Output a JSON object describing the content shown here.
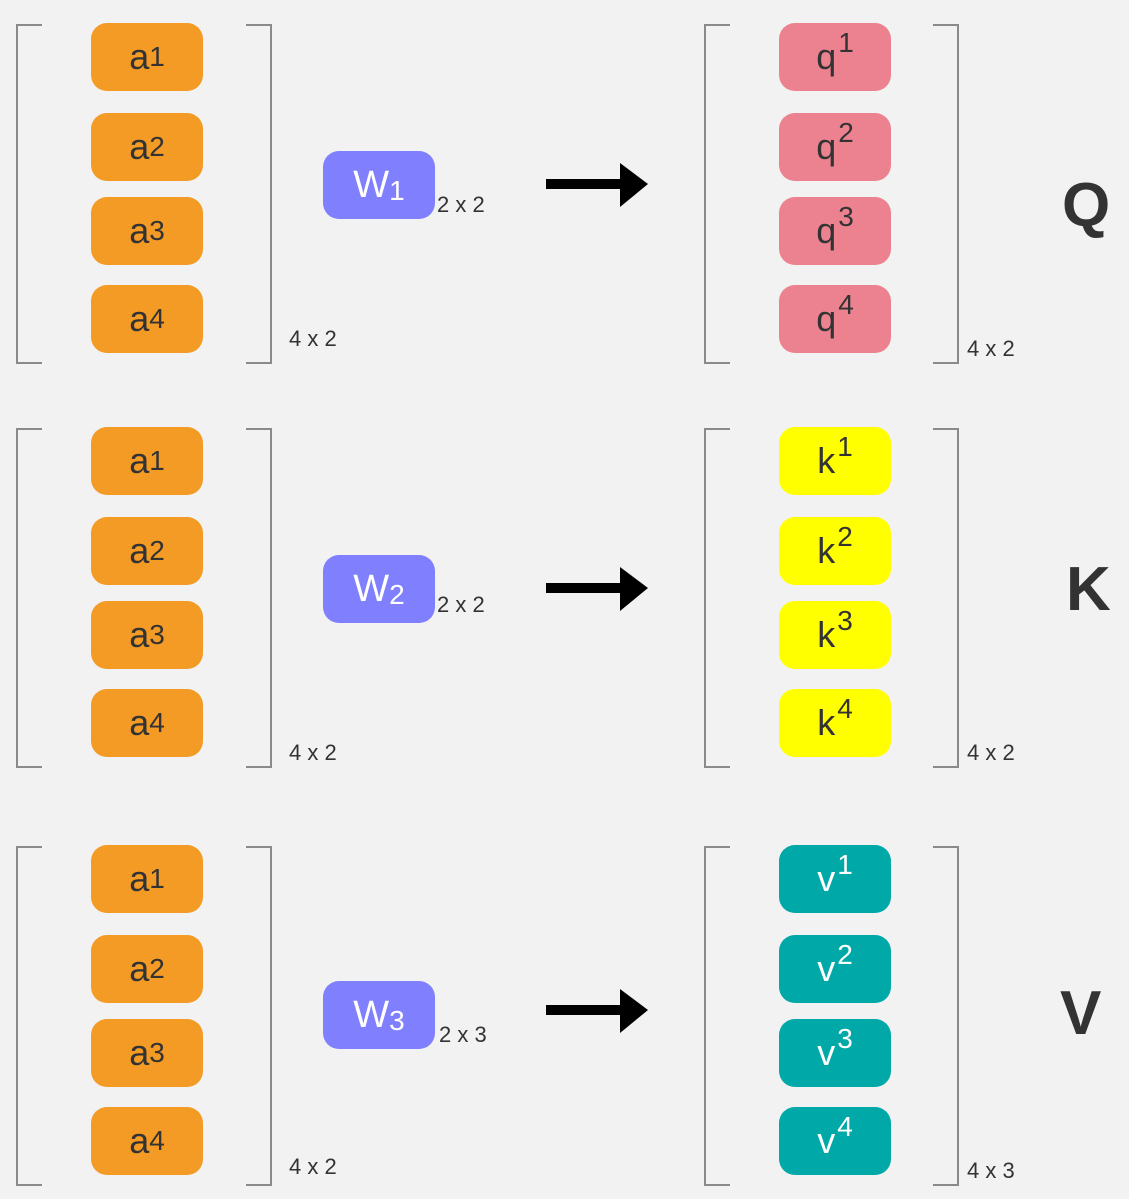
{
  "rows": [
    {
      "input_items": [
        {
          "base": "a",
          "index": "1"
        },
        {
          "base": "a",
          "index": "2"
        },
        {
          "base": "a",
          "index": "3"
        },
        {
          "base": "a",
          "index": "4"
        }
      ],
      "input_dim": "4 x 2",
      "weight": {
        "base": "W",
        "index": "1"
      },
      "weight_dim": "2 x 2",
      "output_items": [
        {
          "base": "q",
          "index": "1"
        },
        {
          "base": "q",
          "index": "2"
        },
        {
          "base": "q",
          "index": "3"
        },
        {
          "base": "q",
          "index": "4"
        }
      ],
      "output_dim": "4 x 2",
      "label": "Q",
      "output_color": "#ec8290"
    },
    {
      "input_items": [
        {
          "base": "a",
          "index": "1"
        },
        {
          "base": "a",
          "index": "2"
        },
        {
          "base": "a",
          "index": "3"
        },
        {
          "base": "a",
          "index": "4"
        }
      ],
      "input_dim": "4 x 2",
      "weight": {
        "base": "W",
        "index": "2"
      },
      "weight_dim": "2 x 2",
      "output_items": [
        {
          "base": "k",
          "index": "1"
        },
        {
          "base": "k",
          "index": "2"
        },
        {
          "base": "k",
          "index": "3"
        },
        {
          "base": "k",
          "index": "4"
        }
      ],
      "output_dim": "4 x 2",
      "label": "K",
      "output_color": "#ffff00"
    },
    {
      "input_items": [
        {
          "base": "a",
          "index": "1"
        },
        {
          "base": "a",
          "index": "2"
        },
        {
          "base": "a",
          "index": "3"
        },
        {
          "base": "a",
          "index": "4"
        }
      ],
      "input_dim": "4 x 2",
      "weight": {
        "base": "W",
        "index": "3"
      },
      "weight_dim": "2 x 3",
      "output_items": [
        {
          "base": "v",
          "index": "1"
        },
        {
          "base": "v",
          "index": "2"
        },
        {
          "base": "v",
          "index": "3"
        },
        {
          "base": "v",
          "index": "4"
        }
      ],
      "output_dim": "4 x 3",
      "label": "V",
      "output_color": "#00a9a8"
    }
  ],
  "colors": {
    "input": "#f39b25",
    "weight": "#8080ff",
    "bracket": "#8a8a8a",
    "background": "#f2f2f2"
  }
}
